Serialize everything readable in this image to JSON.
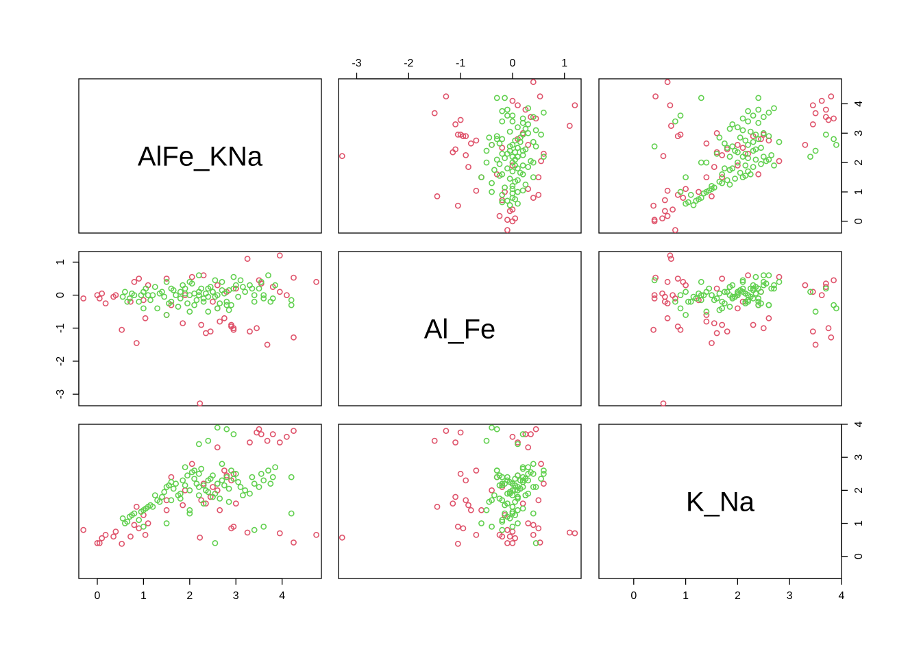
{
  "chart_data": {
    "type": "scatter",
    "kind": "scatterplot-matrix",
    "variables": [
      "AlFe_KNa",
      "Al_Fe",
      "K_Na"
    ],
    "ranges": {
      "AlFe_KNa": [
        -0.4,
        4.85
      ],
      "Al_Fe": [
        -3.35,
        1.32
      ],
      "K_Na": [
        -0.67,
        4.0
      ]
    },
    "ticks": {
      "AlFe_KNa": [
        "0",
        "1",
        "2",
        "3",
        "4"
      ],
      "Al_Fe": [
        "-3",
        "-2",
        "-1",
        "0",
        "1"
      ],
      "K_Na": [
        "0",
        "1",
        "2",
        "3",
        "4"
      ]
    },
    "axis_placement": {
      "bottom": [
        "AlFe_KNa",
        null,
        "K_Na"
      ],
      "top": [
        null,
        "Al_Fe",
        null
      ],
      "left": [
        null,
        "Al_Fe",
        null
      ],
      "right": [
        "AlFe_KNa",
        null,
        "K_Na"
      ]
    },
    "grid": false,
    "legend": "none",
    "series": [
      {
        "color": "#DF536B",
        "points": [
          [
            2.22,
            -3.28,
            0.57
          ],
          [
            0.53,
            -1.05,
            0.38
          ],
          [
            1.04,
            -0.7,
            0.65
          ],
          [
            0.85,
            -1.45,
            1.5
          ],
          [
            0.72,
            -0.2,
            0.6
          ],
          [
            3.25,
            1.1,
            0.72
          ],
          [
            3.95,
            1.2,
            0.7
          ],
          [
            4.25,
            0.53,
            0.42
          ],
          [
            4.74,
            0.4,
            0.65
          ],
          [
            3.3,
            -1.1,
            3.45
          ],
          [
            3.45,
            -1.0,
            3.75
          ],
          [
            3.68,
            -1.5,
            3.5
          ],
          [
            4.25,
            -1.28,
            3.8
          ],
          [
            4.1,
            0.0,
            3.62
          ],
          [
            3.95,
            0.1,
            3.45
          ],
          [
            3.8,
            0.25,
            3.7
          ],
          [
            3.5,
            0.45,
            3.85
          ],
          [
            2.05,
            0.55,
            2.8
          ],
          [
            1.5,
            0.5,
            1.7
          ],
          [
            2.6,
            -0.4,
            2.0
          ],
          [
            2.35,
            -1.15,
            1.6
          ],
          [
            2.9,
            -0.9,
            2.3
          ],
          [
            2.95,
            -1.0,
            2.5
          ],
          [
            3.0,
            0.2,
            1.6
          ],
          [
            2.95,
            -1.05,
            0.9
          ],
          [
            2.9,
            -0.95,
            0.85
          ],
          [
            0.0,
            0.0,
            0.4
          ],
          [
            0.05,
            -0.1,
            0.4
          ],
          [
            0.1,
            0.05,
            0.55
          ],
          [
            0.18,
            -0.25,
            0.65
          ],
          [
            -0.3,
            -0.1,
            0.8
          ],
          [
            0.35,
            -0.05,
            0.6
          ],
          [
            0.4,
            0.0,
            0.75
          ],
          [
            0.8,
            0.4,
            0.95
          ],
          [
            0.9,
            0.5,
            0.85
          ],
          [
            1.1,
            0.3,
            1.0
          ],
          [
            1.0,
            -0.15,
            1.25
          ],
          [
            1.5,
            -0.6,
            1.4
          ],
          [
            1.85,
            -0.85,
            1.55
          ],
          [
            2.25,
            -0.9,
            1.7
          ],
          [
            2.45,
            -1.1,
            1.8
          ],
          [
            2.65,
            -0.8,
            1.4
          ],
          [
            2.75,
            -0.7,
            2.6
          ],
          [
            2.3,
            0.6,
            2.2
          ],
          [
            2.5,
            -0.2,
            2.1
          ],
          [
            3.55,
            0.35,
            3.7
          ],
          [
            2.6,
            0.3,
            3.3
          ],
          [
            1.9,
            0.0,
            2.0
          ],
          [
            1.6,
            -0.3,
            2.4
          ],
          [
            2.8,
            0.1,
            2.45
          ]
        ]
      },
      {
        "color": "#61D04F",
        "points": [
          [
            2.0,
            0.0,
            2.0
          ],
          [
            1.8,
            -0.1,
            1.9
          ],
          [
            2.2,
            0.1,
            2.1
          ],
          [
            1.6,
            -0.2,
            1.7
          ],
          [
            2.4,
            0.2,
            2.3
          ],
          [
            2.6,
            0.0,
            2.2
          ],
          [
            1.4,
            0.1,
            1.8
          ],
          [
            2.8,
            -0.2,
            2.4
          ],
          [
            1.2,
            0.0,
            1.5
          ],
          [
            3.0,
            0.3,
            2.5
          ],
          [
            2.1,
            -0.3,
            2.6
          ],
          [
            1.9,
            0.2,
            2.7
          ],
          [
            2.3,
            -0.1,
            1.6
          ],
          [
            1.7,
            0.0,
            2.2
          ],
          [
            2.5,
            0.1,
            1.8
          ],
          [
            0.7,
            -0.1,
            1.2
          ],
          [
            0.6,
            0.1,
            1.0
          ],
          [
            0.8,
            0.0,
            1.3
          ],
          [
            0.9,
            -0.2,
            1.1
          ],
          [
            1.0,
            0.1,
            1.4
          ],
          [
            1.1,
            0.0,
            1.5
          ],
          [
            3.2,
            0.1,
            2.0
          ],
          [
            3.4,
            0.0,
            2.2
          ],
          [
            3.6,
            -0.1,
            2.3
          ],
          [
            3.5,
            0.2,
            2.1
          ],
          [
            3.3,
            0.3,
            1.9
          ],
          [
            3.7,
            0.6,
            2.6
          ],
          [
            3.8,
            -0.1,
            2.4
          ],
          [
            2.7,
            0.4,
            2.8
          ],
          [
            2.9,
            -0.3,
            2.6
          ],
          [
            1.5,
            0.4,
            2.1
          ],
          [
            1.3,
            -0.4,
            1.7
          ],
          [
            2.2,
            0.6,
            2.5
          ],
          [
            2.0,
            -0.5,
            1.4
          ],
          [
            1.85,
            0.3,
            2.3
          ],
          [
            2.15,
            -0.15,
            2.2
          ],
          [
            2.35,
            0.05,
            2.0
          ],
          [
            2.55,
            -0.05,
            1.9
          ],
          [
            1.65,
            0.15,
            2.05
          ],
          [
            1.45,
            -0.05,
            1.95
          ],
          [
            2.45,
            0.25,
            2.35
          ],
          [
            2.75,
            0.05,
            2.15
          ],
          [
            1.95,
            -0.25,
            2.45
          ],
          [
            2.05,
            0.35,
            2.55
          ],
          [
            2.25,
            0.2,
            2.65
          ],
          [
            1.75,
            -0.35,
            1.85
          ],
          [
            2.65,
            -0.25,
            1.75
          ],
          [
            2.85,
            0.15,
            2.05
          ],
          [
            3.05,
            -0.05,
            2.25
          ],
          [
            3.15,
            0.25,
            1.85
          ],
          [
            0.55,
            -0.05,
            1.15
          ],
          [
            0.75,
            0.05,
            1.25
          ],
          [
            0.95,
            0.0,
            1.35
          ],
          [
            1.15,
            -0.15,
            1.55
          ],
          [
            1.35,
            0.05,
            1.65
          ],
          [
            3.35,
            0.2,
            2.4
          ],
          [
            3.55,
            0.4,
            2.5
          ],
          [
            3.75,
            -0.2,
            2.2
          ],
          [
            3.85,
            0.3,
            2.7
          ],
          [
            4.2,
            -0.3,
            2.4
          ],
          [
            4.2,
            -0.15,
            1.3
          ],
          [
            2.6,
            -0.4,
            3.9
          ],
          [
            2.8,
            -0.3,
            3.85
          ],
          [
            2.4,
            -0.5,
            3.5
          ],
          [
            2.2,
            0.1,
            3.4
          ],
          [
            2.95,
            0.2,
            3.7
          ],
          [
            2.0,
            0.4,
            1.3
          ],
          [
            1.5,
            -0.6,
            1.0
          ],
          [
            1.0,
            -0.4,
            0.9
          ],
          [
            2.55,
            0.45,
            0.4
          ],
          [
            3.4,
            -0.2,
            0.8
          ],
          [
            3.6,
            0.0,
            0.9
          ],
          [
            1.25,
            0.25,
            1.85
          ],
          [
            1.55,
            -0.25,
            2.15
          ],
          [
            2.1,
            0.05,
            2.35
          ],
          [
            2.3,
            -0.2,
            2.15
          ],
          [
            1.8,
            0.1,
            1.75
          ],
          [
            1.6,
            0.2,
            2.25
          ],
          [
            2.4,
            -0.05,
            1.95
          ],
          [
            2.5,
            0.1,
            2.45
          ],
          [
            2.2,
            0.0,
            1.85
          ],
          [
            1.9,
            0.05,
            2.15
          ],
          [
            2.7,
            0.15,
            2.3
          ],
          [
            3.1,
            0.45,
            2.1
          ],
          [
            0.65,
            -0.2,
            1.05
          ],
          [
            1.05,
            0.2,
            1.45
          ],
          [
            2.85,
            -0.45,
            1.65
          ],
          [
            2.95,
            0.55,
            2.35
          ]
        ]
      }
    ]
  }
}
